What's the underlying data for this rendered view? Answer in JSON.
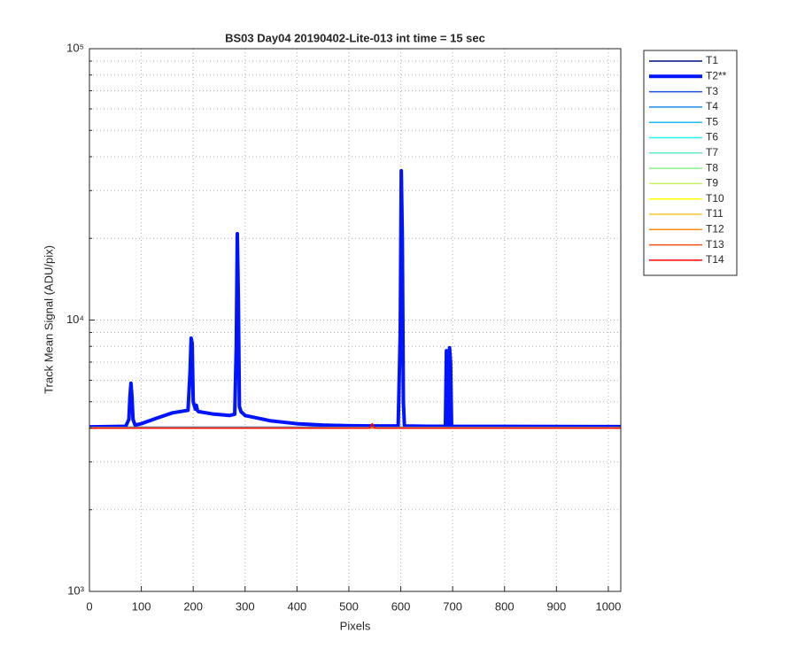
{
  "chart_data": {
    "type": "line",
    "title": "BS03 Day04 20190402-Lite-013 int time = 15 sec",
    "x_label": "Pixels",
    "y_label": "Track Mean Signal (ADU/pix)",
    "xlim": [
      0,
      1024
    ],
    "xticks": [
      0,
      100,
      200,
      300,
      400,
      500,
      600,
      700,
      800,
      900,
      1000
    ],
    "ylim": [
      1000,
      100000
    ],
    "y_scale": "log",
    "yticks": [
      {
        "value": 1000,
        "label": "10³"
      },
      {
        "value": 10000,
        "label": "10⁴"
      },
      {
        "value": 100000,
        "label": "10⁵"
      }
    ],
    "grid": true,
    "legend_position": "outside-right",
    "series": [
      {
        "name": "T1",
        "color": "#000a8f",
        "line_width": 1.5,
        "x": [
          0,
          1024
        ],
        "values": [
          4030,
          4030
        ]
      },
      {
        "name": "T2**",
        "color": "#0014ff",
        "line_width": 4,
        "x": [
          0,
          70,
          76,
          78,
          80,
          82,
          84,
          88,
          100,
          130,
          160,
          190,
          194,
          196,
          198,
          200,
          204,
          206,
          208,
          210,
          240,
          270,
          280,
          283,
          285,
          287,
          289,
          292,
          300,
          350,
          400,
          450,
          500,
          550,
          595,
          599,
          601,
          603,
          605,
          607,
          610,
          650,
          686,
          688,
          690,
          692,
          694,
          696,
          698,
          700,
          1024
        ],
        "values": [
          4040,
          4060,
          4300,
          5200,
          5850,
          5200,
          4300,
          4100,
          4150,
          4350,
          4550,
          4650,
          6500,
          8570,
          8200,
          5000,
          4700,
          4850,
          4650,
          4600,
          4500,
          4450,
          4500,
          8000,
          20800,
          12000,
          4800,
          4600,
          4450,
          4250,
          4150,
          4100,
          4080,
          4070,
          4070,
          9000,
          35500,
          20000,
          5000,
          4100,
          4070,
          4060,
          4060,
          7710,
          7000,
          4100,
          7900,
          7000,
          4070,
          4060,
          4050
        ]
      },
      {
        "name": "T3",
        "color": "#1e50dc",
        "line_width": 1.5,
        "x": [
          0,
          1024
        ],
        "values": [
          4020,
          4020
        ]
      },
      {
        "name": "T4",
        "color": "#1e8cf0",
        "line_width": 1.5,
        "x": [
          0,
          1024
        ],
        "values": [
          4015,
          4015
        ]
      },
      {
        "name": "T5",
        "color": "#19bef0",
        "line_width": 1.5,
        "x": [
          0,
          1024
        ],
        "values": [
          4015,
          4015
        ]
      },
      {
        "name": "T6",
        "color": "#28f0f0",
        "line_width": 1.5,
        "x": [
          0,
          1024
        ],
        "values": [
          4010,
          4010
        ]
      },
      {
        "name": "T7",
        "color": "#64e6c8",
        "line_width": 1.5,
        "x": [
          0,
          1024
        ],
        "values": [
          4010,
          4010
        ]
      },
      {
        "name": "T8",
        "color": "#8cf08c",
        "line_width": 1.5,
        "x": [
          0,
          1024
        ],
        "values": [
          4010,
          4010
        ]
      },
      {
        "name": "T9",
        "color": "#c8f064",
        "line_width": 1.5,
        "x": [
          0,
          1024
        ],
        "values": [
          4005,
          4005
        ]
      },
      {
        "name": "T10",
        "color": "#ffff00",
        "line_width": 1.5,
        "x": [
          0,
          1024
        ],
        "values": [
          4005,
          4005
        ]
      },
      {
        "name": "T11",
        "color": "#f0c828",
        "line_width": 1.5,
        "x": [
          0,
          1024
        ],
        "values": [
          4005,
          4005
        ]
      },
      {
        "name": "T12",
        "color": "#ff8c14",
        "line_width": 1.5,
        "x": [
          0,
          1024
        ],
        "values": [
          4000,
          4000
        ]
      },
      {
        "name": "T13",
        "color": "#ff5014",
        "line_width": 1.5,
        "x": [
          0,
          1024
        ],
        "values": [
          4000,
          4000
        ]
      },
      {
        "name": "T14",
        "color": "#ff0000",
        "line_width": 1.5,
        "x": [
          0,
          540,
          545,
          550,
          1024
        ],
        "values": [
          4000,
          4000,
          4150,
          4000,
          4000
        ]
      }
    ]
  }
}
